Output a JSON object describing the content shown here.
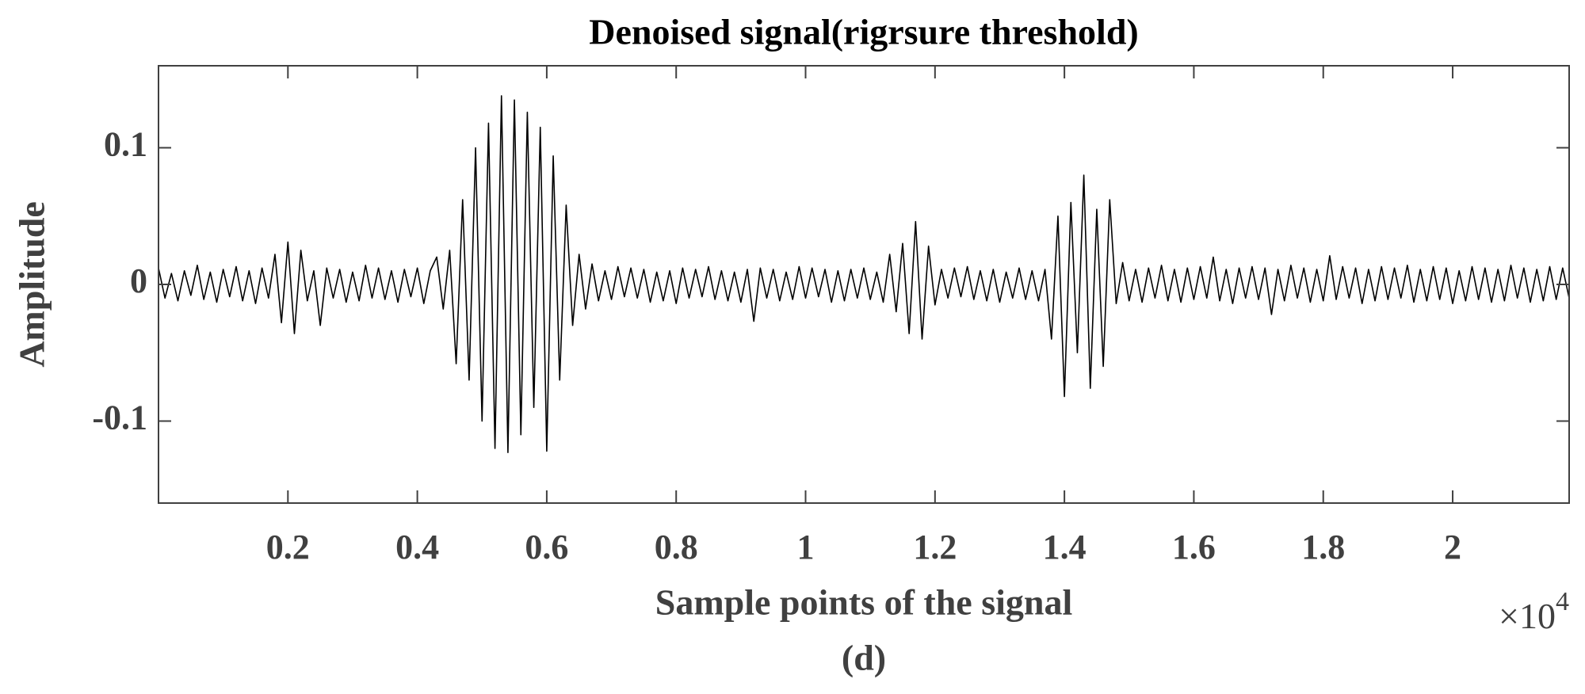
{
  "chart_data": {
    "type": "line",
    "title": "Denoised signal(rigrsure threshold)",
    "x_label": "Sample points of the signal",
    "y_label": "Amplitude",
    "caption": "(d)",
    "x_multiplier": {
      "base": "×10",
      "exponent": "4"
    },
    "color": "#000000",
    "xlim": [
      0,
      2.18
    ],
    "ylim": [
      -0.16,
      0.16
    ],
    "xticks": [
      0.2,
      0.4,
      0.6,
      0.8,
      1,
      1.2,
      1.4,
      1.6,
      1.8,
      2
    ],
    "yticks": [
      -0.1,
      0,
      0.1
    ],
    "x": [
      0,
      0.01,
      0.02,
      0.03,
      0.04,
      0.05,
      0.06,
      0.07,
      0.08,
      0.09,
      0.1,
      0.11,
      0.12,
      0.13,
      0.14,
      0.15,
      0.16,
      0.17,
      0.18,
      0.19,
      0.2,
      0.21,
      0.22,
      0.23,
      0.24,
      0.25,
      0.26,
      0.27,
      0.28,
      0.29,
      0.3,
      0.31,
      0.32,
      0.33,
      0.34,
      0.35,
      0.36,
      0.37,
      0.38,
      0.39,
      0.4,
      0.41,
      0.42,
      0.43,
      0.44,
      0.45,
      0.46,
      0.47,
      0.48,
      0.49,
      0.5,
      0.51,
      0.52,
      0.53,
      0.54,
      0.55,
      0.56,
      0.57,
      0.58,
      0.59,
      0.6,
      0.61,
      0.62,
      0.63,
      0.64,
      0.65,
      0.66,
      0.67,
      0.68,
      0.69,
      0.7,
      0.71,
      0.72,
      0.73,
      0.74,
      0.75,
      0.76,
      0.77,
      0.78,
      0.79,
      0.8,
      0.81,
      0.82,
      0.83,
      0.84,
      0.85,
      0.86,
      0.87,
      0.88,
      0.89,
      0.9,
      0.91,
      0.92,
      0.93,
      0.94,
      0.95,
      0.96,
      0.97,
      0.98,
      0.99,
      1,
      1.01,
      1.02,
      1.03,
      1.04,
      1.05,
      1.06,
      1.07,
      1.08,
      1.09,
      1.1,
      1.11,
      1.12,
      1.13,
      1.14,
      1.15,
      1.16,
      1.17,
      1.18,
      1.19,
      1.2,
      1.21,
      1.22,
      1.23,
      1.24,
      1.25,
      1.26,
      1.27,
      1.28,
      1.29,
      1.3,
      1.31,
      1.32,
      1.33,
      1.34,
      1.35,
      1.36,
      1.37,
      1.38,
      1.39,
      1.4,
      1.41,
      1.42,
      1.43,
      1.44,
      1.45,
      1.46,
      1.47,
      1.48,
      1.49,
      1.5,
      1.51,
      1.52,
      1.53,
      1.54,
      1.55,
      1.56,
      1.57,
      1.58,
      1.59,
      1.6,
      1.61,
      1.62,
      1.63,
      1.64,
      1.65,
      1.66,
      1.67,
      1.68,
      1.69,
      1.7,
      1.71,
      1.72,
      1.73,
      1.74,
      1.75,
      1.76,
      1.77,
      1.78,
      1.79,
      1.8,
      1.81,
      1.82,
      1.83,
      1.84,
      1.85,
      1.86,
      1.87,
      1.88,
      1.89,
      1.9,
      1.91,
      1.92,
      1.93,
      1.94,
      1.95,
      1.96,
      1.97,
      1.98,
      1.99,
      2,
      2.01,
      2.02,
      2.03,
      2.04,
      2.05,
      2.06,
      2.07,
      2.08,
      2.09,
      2.1,
      2.11,
      2.12,
      2.13,
      2.14,
      2.15,
      2.16,
      2.17,
      2.18
    ],
    "values": [
      0.012,
      -0.01,
      0.008,
      -0.012,
      0.01,
      -0.008,
      0.014,
      -0.011,
      0.009,
      -0.013,
      0.011,
      -0.009,
      0.013,
      -0.012,
      0.01,
      -0.014,
      0.012,
      -0.01,
      0.022,
      -0.028,
      0.031,
      -0.036,
      0.025,
      -0.012,
      0.01,
      -0.03,
      0.012,
      -0.01,
      0.011,
      -0.013,
      0.009,
      -0.012,
      0.014,
      -0.01,
      0.012,
      -0.011,
      0.01,
      -0.013,
      0.011,
      -0.009,
      0.012,
      -0.014,
      0.01,
      0.02,
      -0.018,
      0.025,
      -0.058,
      0.062,
      -0.07,
      0.1,
      -0.1,
      0.118,
      -0.12,
      0.138,
      -0.123,
      0.135,
      -0.11,
      0.126,
      -0.09,
      0.115,
      -0.122,
      0.094,
      -0.07,
      0.058,
      -0.03,
      0.022,
      -0.018,
      0.015,
      -0.012,
      0.01,
      -0.011,
      0.013,
      -0.009,
      0.012,
      -0.01,
      0.011,
      -0.013,
      0.009,
      -0.012,
      0.01,
      -0.014,
      0.012,
      -0.01,
      0.011,
      -0.009,
      0.013,
      -0.011,
      0.01,
      -0.012,
      0.009,
      -0.013,
      0.011,
      -0.027,
      0.012,
      -0.01,
      0.011,
      -0.012,
      0.009,
      -0.011,
      0.013,
      -0.01,
      0.012,
      -0.009,
      0.011,
      -0.013,
      0.01,
      -0.012,
      0.011,
      -0.01,
      0.012,
      -0.011,
      0.009,
      -0.013,
      0.022,
      -0.02,
      0.03,
      -0.036,
      0.046,
      -0.04,
      0.028,
      -0.015,
      0.011,
      -0.01,
      0.012,
      -0.009,
      0.013,
      -0.011,
      0.01,
      -0.012,
      0.011,
      -0.013,
      0.009,
      -0.01,
      0.012,
      -0.011,
      0.01,
      -0.012,
      0.011,
      -0.04,
      0.05,
      -0.082,
      0.06,
      -0.05,
      0.08,
      -0.076,
      0.055,
      -0.06,
      0.062,
      -0.014,
      0.016,
      -0.012,
      0.011,
      -0.013,
      0.012,
      -0.01,
      0.014,
      -0.012,
      0.011,
      -0.013,
      0.012,
      -0.011,
      0.013,
      -0.01,
      0.02,
      -0.012,
      0.011,
      -0.014,
      0.012,
      -0.01,
      0.013,
      -0.011,
      0.012,
      -0.022,
      0.011,
      -0.012,
      0.014,
      -0.01,
      0.012,
      -0.013,
      0.011,
      -0.012,
      0.021,
      -0.011,
      0.013,
      -0.01,
      0.012,
      -0.014,
      0.011,
      -0.012,
      0.013,
      -0.011,
      0.012,
      -0.01,
      0.014,
      -0.013,
      0.011,
      -0.012,
      0.013,
      -0.011,
      0.012,
      -0.014,
      0.01,
      -0.012,
      0.013,
      -0.011,
      0.012,
      -0.013,
      0.011,
      -0.012,
      0.014,
      -0.01,
      0.012,
      -0.013,
      0.011,
      -0.012,
      0.013,
      -0.011,
      0.012,
      -0.01
    ]
  }
}
